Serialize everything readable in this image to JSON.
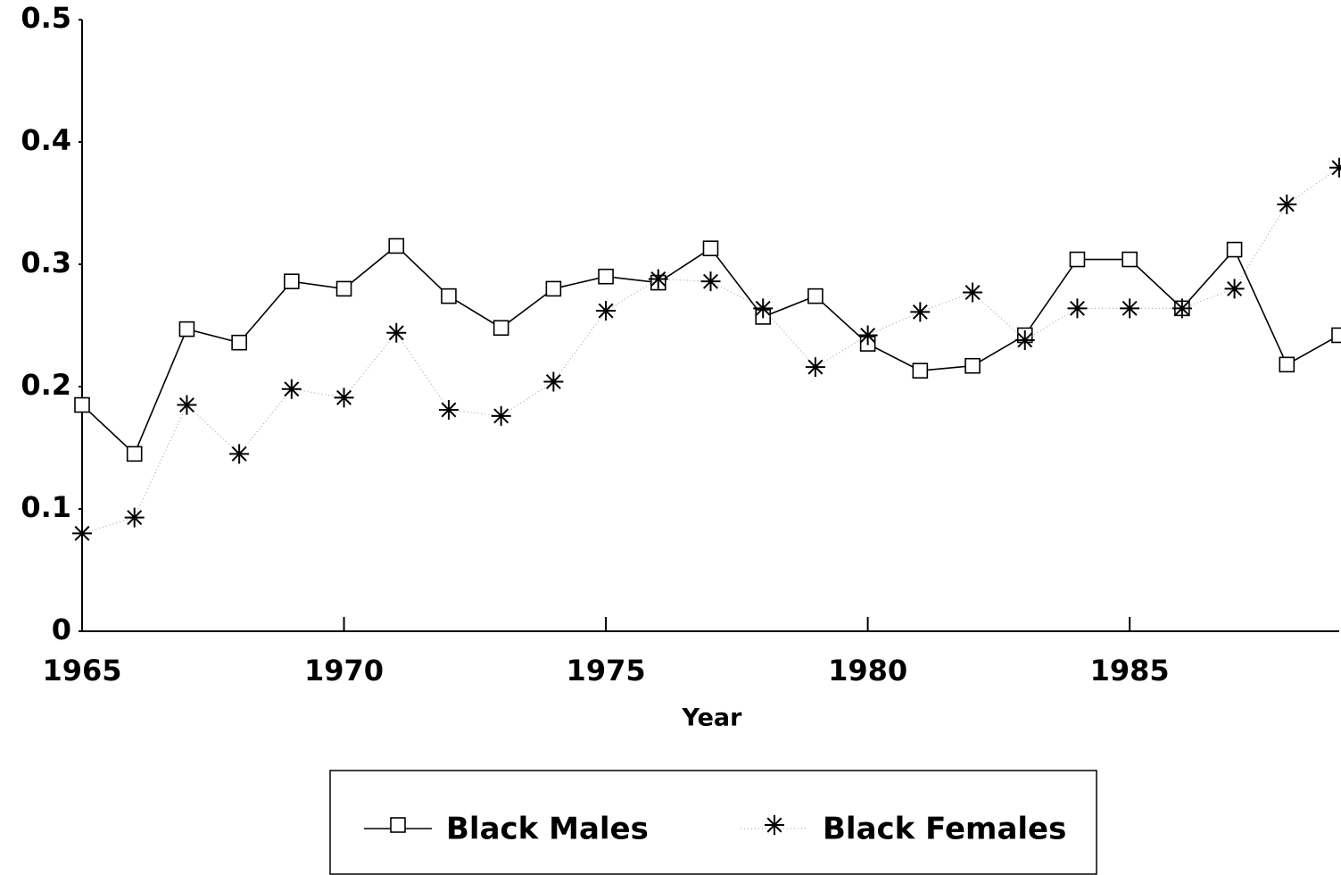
{
  "chart_data": {
    "type": "line",
    "x_label": "Year",
    "x": [
      1965,
      1966,
      1967,
      1968,
      1969,
      1970,
      1971,
      1972,
      1973,
      1974,
      1975,
      1976,
      1977,
      1978,
      1979,
      1980,
      1981,
      1982,
      1983,
      1984,
      1985,
      1986,
      1987,
      1988,
      1989
    ],
    "series": [
      {
        "name": "Black Males",
        "color": "#000000",
        "marker": "square",
        "line": "solid",
        "values": [
          0.185,
          0.145,
          0.247,
          0.236,
          0.286,
          0.28,
          0.315,
          0.274,
          0.248,
          0.28,
          0.29,
          0.285,
          0.313,
          0.257,
          0.274,
          0.235,
          0.213,
          0.217,
          0.242,
          0.304,
          0.304,
          0.264,
          0.312,
          0.218,
          0.242
        ]
      },
      {
        "name": "Black Females",
        "color": "#000000",
        "marker": "asterisk",
        "line": "dotted",
        "values": [
          0.08,
          0.093,
          0.185,
          0.145,
          0.198,
          0.191,
          0.244,
          0.181,
          0.176,
          0.204,
          0.262,
          0.288,
          0.286,
          0.264,
          0.216,
          0.242,
          0.261,
          0.277,
          0.238,
          0.264,
          0.264,
          0.264,
          0.28,
          0.349,
          0.379
        ]
      }
    ],
    "xlim": [
      1965,
      1989
    ],
    "xticks": [
      1965,
      1970,
      1975,
      1980,
      1985
    ],
    "ylim": [
      0,
      0.5
    ],
    "yticks": [
      0,
      0.1,
      0.2,
      0.3,
      0.4,
      0.5
    ],
    "grid": false,
    "legend": "bottom"
  }
}
